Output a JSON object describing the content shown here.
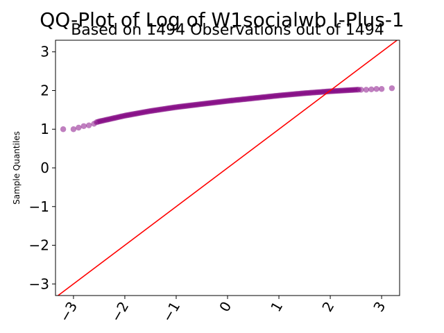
{
  "chart_data": {
    "type": "scatter",
    "title": "QQ-Plot of Log of W1socialwb I-Plus-1",
    "subtitle": "Based on 1494 Observations out of 1494",
    "xlabel": "",
    "ylabel": "Sample Quantiles",
    "xlim": [
      -3.35,
      3.35
    ],
    "ylim": [
      -3.3,
      3.3
    ],
    "xticks": [
      -3,
      -2,
      -1,
      0,
      1,
      2,
      3
    ],
    "yticks": [
      -3,
      -2,
      -1,
      0,
      1,
      2,
      3
    ],
    "grid": false,
    "point_color": "#800080",
    "line_color": "#ff0000",
    "reference_line": {
      "slope": 1,
      "intercept": 0
    },
    "curve_knots": {
      "x": [
        -3.2,
        -3.0,
        -2.8,
        -2.5,
        -2.0,
        -1.5,
        -1.0,
        -0.5,
        0.0,
        0.5,
        1.0,
        1.5,
        2.0,
        2.5,
        3.0,
        3.2
      ],
      "y": [
        1.0,
        1.03,
        1.08,
        1.2,
        1.35,
        1.47,
        1.57,
        1.65,
        1.73,
        1.8,
        1.87,
        1.93,
        1.98,
        2.02,
        2.04,
        2.06
      ]
    },
    "n_points": 1494,
    "tail_points": {
      "x": [
        -3.2,
        -3.0,
        -2.9,
        -2.8,
        -2.7,
        -2.6,
        2.6,
        2.7,
        2.8,
        2.9,
        3.0,
        3.2
      ],
      "y": [
        1.0,
        1.0,
        1.04,
        1.08,
        1.1,
        1.14,
        2.02,
        2.02,
        2.03,
        2.04,
        2.04,
        2.06
      ]
    }
  }
}
